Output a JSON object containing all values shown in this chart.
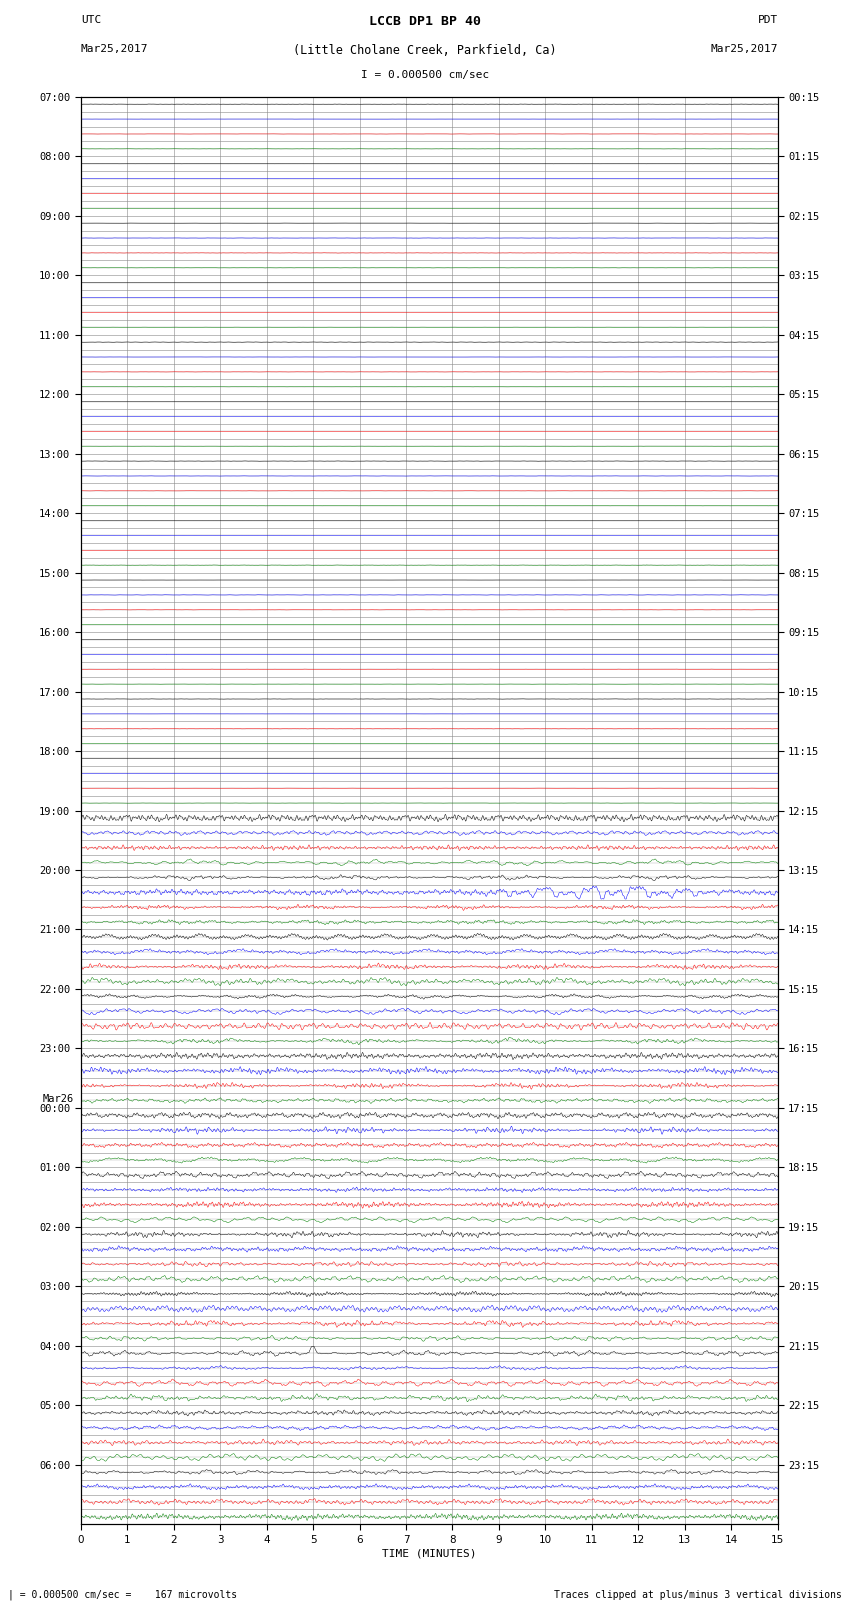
{
  "title_line1": "LCCB DP1 BP 40",
  "title_line2": "(Little Cholane Creek, Parkfield, Ca)",
  "scale_bar_text": "I = 0.000500 cm/sec",
  "left_label_top": "UTC",
  "left_label_date": "Mar25,2017",
  "right_label_top": "PDT",
  "right_label_date": "Mar25,2017",
  "xlabel": "TIME (MINUTES)",
  "footnote_left": "| = 0.000500 cm/sec =    167 microvolts",
  "footnote_right": "Traces clipped at plus/minus 3 vertical divisions",
  "xmin": 0,
  "xmax": 15,
  "colors": [
    "black",
    "blue",
    "red",
    "green"
  ],
  "utc_hour_labels": [
    "07:00",
    "08:00",
    "09:00",
    "10:00",
    "11:00",
    "12:00",
    "13:00",
    "14:00",
    "15:00",
    "16:00",
    "17:00",
    "18:00",
    "19:00",
    "20:00",
    "21:00",
    "22:00",
    "23:00",
    "00:00",
    "01:00",
    "02:00",
    "03:00",
    "04:00",
    "05:00",
    "06:00"
  ],
  "pdt_hour_labels": [
    "00:15",
    "01:15",
    "02:15",
    "03:15",
    "04:15",
    "05:15",
    "06:15",
    "07:15",
    "08:15",
    "09:15",
    "10:15",
    "11:15",
    "12:15",
    "13:15",
    "14:15",
    "15:15",
    "16:15",
    "17:15",
    "18:15",
    "19:15",
    "20:15",
    "21:15",
    "22:15",
    "23:15"
  ],
  "num_hours": 24,
  "traces_per_hour": 4,
  "quiet_hours": 12,
  "signal_amplitude_quiet": 0.012,
  "signal_amplitude_active": 0.28,
  "background": "white",
  "grid_color": "#888888",
  "figwidth": 8.5,
  "figheight": 16.13
}
